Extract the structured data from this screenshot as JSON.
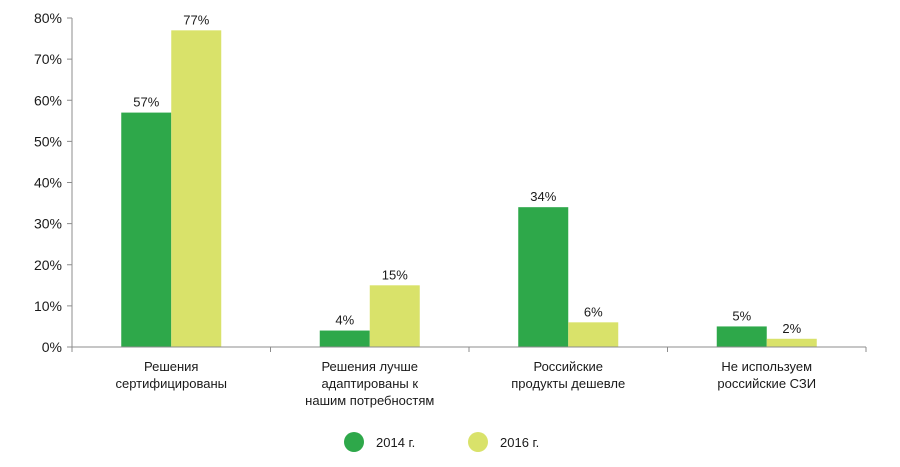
{
  "chart_data": {
    "type": "bar",
    "categories": [
      [
        "Решения",
        "сертифицированы"
      ],
      [
        "Решения лучше",
        "адаптированы к",
        "нашим потребностям"
      ],
      [
        "Российские",
        "продукты дешевле"
      ],
      [
        "Не используем",
        "российские СЗИ"
      ]
    ],
    "series": [
      {
        "name": "2014 г.",
        "color": "#2ea84a",
        "values": [
          57,
          4,
          34,
          5
        ],
        "labels": [
          "57%",
          "4%",
          "34%",
          "5%"
        ]
      },
      {
        "name": "2016 г.",
        "color": "#d9e26a",
        "values": [
          77,
          15,
          6,
          2
        ],
        "labels": [
          "77%",
          "15%",
          "6%",
          "2%"
        ]
      }
    ],
    "y_ticks": [
      "0%",
      "10%",
      "20%",
      "30%",
      "40%",
      "50%",
      "60%",
      "70%",
      "80%"
    ],
    "ylim": [
      0,
      80
    ],
    "grid": false,
    "legend_position": "bottom-center"
  }
}
